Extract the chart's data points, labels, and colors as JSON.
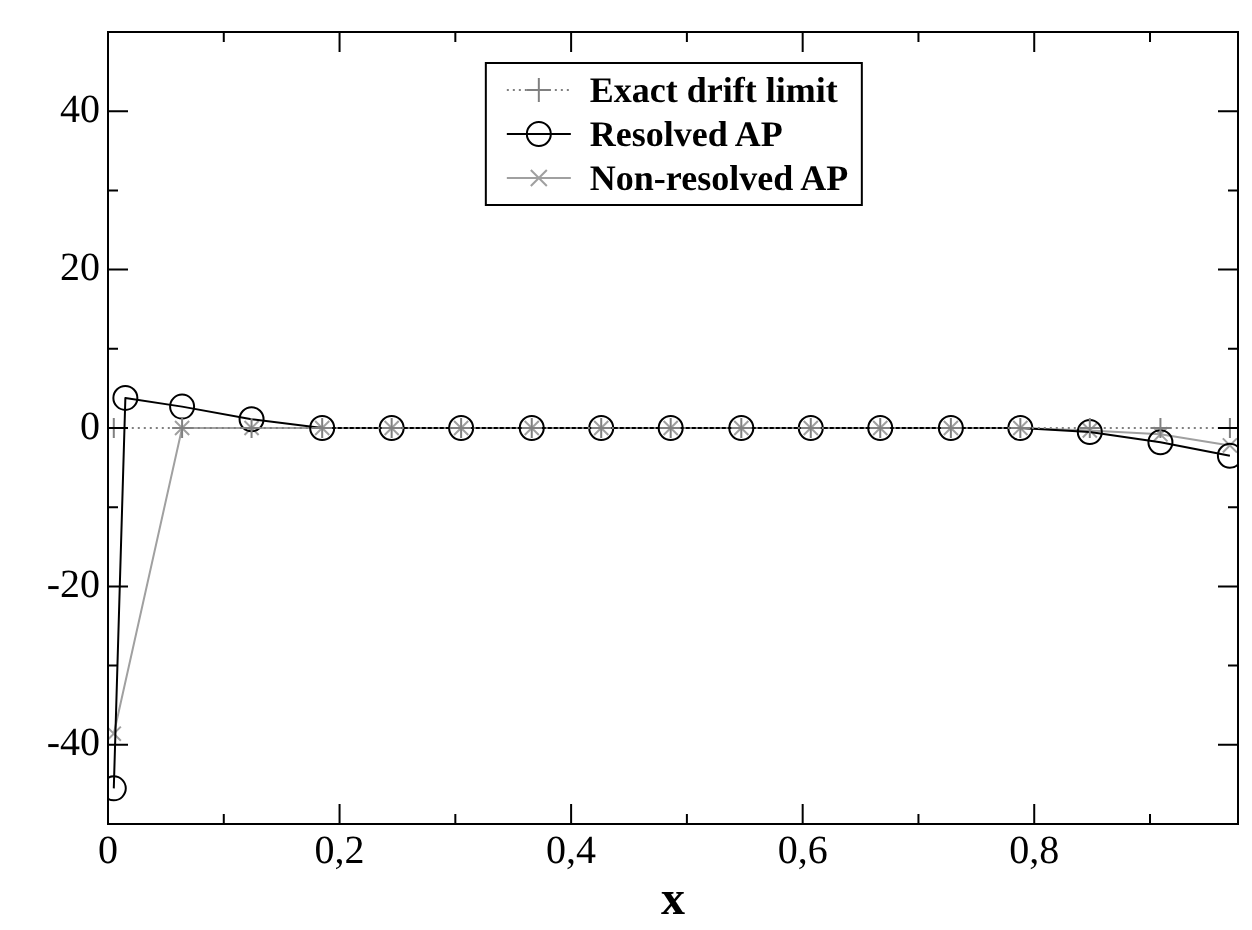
{
  "chart_data": {
    "type": "line",
    "xlabel": "x",
    "xlim": [
      0,
      0.976
    ],
    "ylim": [
      -50,
      50
    ],
    "xticks": [
      0,
      {
        "value": 0.1,
        "label": null
      },
      {
        "value": 0.2,
        "label": "0,2"
      },
      {
        "value": 0.3,
        "label": null
      },
      {
        "value": 0.4,
        "label": "0,4"
      },
      {
        "value": 0.5,
        "label": null
      },
      {
        "value": 0.6,
        "label": "0,6"
      },
      {
        "value": 0.7,
        "label": null
      },
      {
        "value": 0.8,
        "label": "0,8"
      },
      {
        "value": 0.9,
        "label": null
      }
    ],
    "yticks": [
      {
        "value": -50,
        "label": null
      },
      -40,
      {
        "value": -30,
        "label": null
      },
      -20,
      {
        "value": -10,
        "label": null
      },
      0,
      {
        "value": 10,
        "label": null
      },
      20,
      {
        "value": 30,
        "label": null
      },
      40,
      {
        "value": 50,
        "label": null
      }
    ],
    "legend": "top",
    "grid": false,
    "series": [
      {
        "name": "Exact drift limit",
        "color": "#808080",
        "marker": "cross",
        "line_style": "dotted",
        "x": [
          0.005,
          0.064,
          0.124,
          0.185,
          0.245,
          0.305,
          0.366,
          0.426,
          0.486,
          0.547,
          0.607,
          0.667,
          0.728,
          0.788,
          0.848,
          0.909,
          0.969
        ],
        "values": [
          0,
          0,
          0,
          0,
          0,
          0,
          0,
          0,
          0,
          0,
          0,
          0,
          0,
          0,
          0,
          0,
          0
        ]
      },
      {
        "name": "Resolved AP",
        "color": "#000000",
        "marker": "circle",
        "line_style": "solid",
        "x": [
          0.005,
          0.015,
          0.064,
          0.124,
          0.185,
          0.245,
          0.305,
          0.366,
          0.426,
          0.486,
          0.547,
          0.607,
          0.667,
          0.728,
          0.788,
          0.848,
          0.909,
          0.969
        ],
        "values": [
          -45.5,
          3.8,
          2.7,
          1.1,
          0,
          0,
          0,
          0,
          0,
          0,
          0,
          0,
          0,
          0,
          0,
          -0.5,
          -1.8,
          -3.5
        ]
      },
      {
        "name": "Non-resolved AP",
        "color": "#a0a0a0",
        "marker": "x",
        "line_style": "solid",
        "x": [
          0.005,
          0.064,
          0.124,
          0.185,
          0.245,
          0.305,
          0.366,
          0.426,
          0.486,
          0.547,
          0.607,
          0.667,
          0.728,
          0.788,
          0.848,
          0.909,
          0.969
        ],
        "values": [
          -38.6,
          0,
          0,
          0,
          0,
          0,
          0,
          0,
          0,
          0,
          0,
          0,
          0,
          0,
          -0.3,
          -0.8,
          -2.2
        ]
      }
    ]
  }
}
